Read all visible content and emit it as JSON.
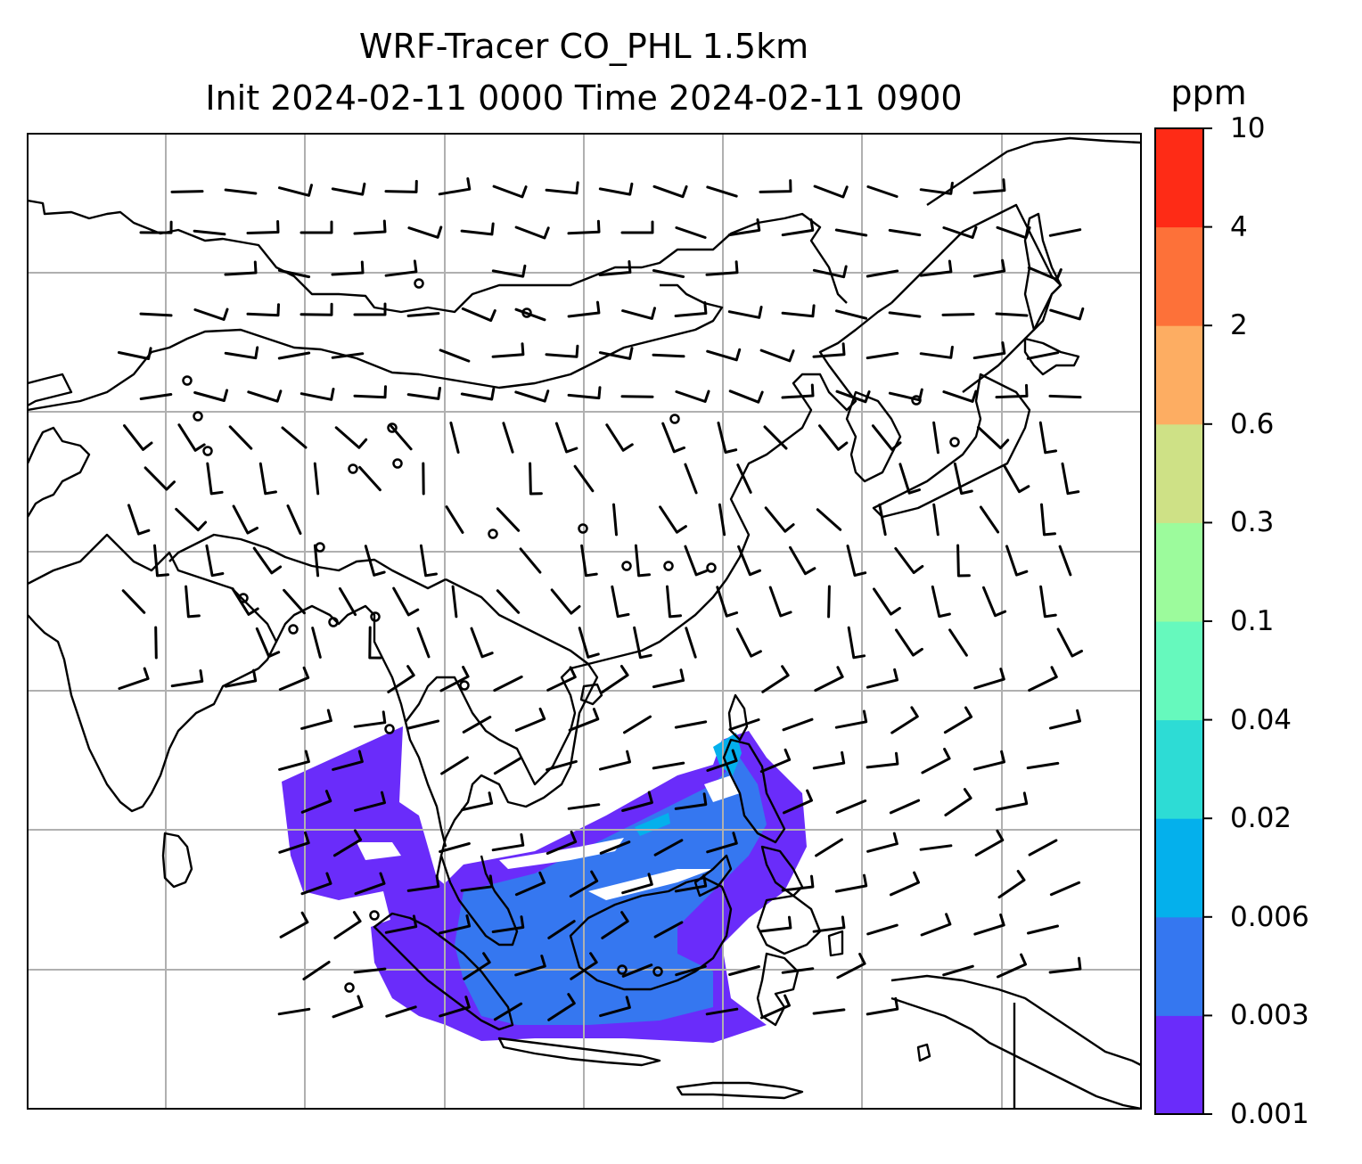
{
  "title_line1": "WRF-Tracer CO_PHL 1.5km",
  "title_line2": "Init 2024-02-11 0000 Time 2024-02-11 0900",
  "colorbar": {
    "unit": "ppm",
    "levels": [
      "0.001",
      "0.003",
      "0.006",
      "0.02",
      "0.04",
      "0.1",
      "0.3",
      "0.6",
      "2",
      "4",
      "10"
    ],
    "colors": [
      "#6a2cfa",
      "#3577f0",
      "#04b0ec",
      "#2ddcd5",
      "#66f9bd",
      "#9cfb9c",
      "#cee186",
      "#fdad62",
      "#fd7139",
      "#fe2b16"
    ]
  },
  "map": {
    "gridlines": true,
    "coastline_color": "#000000",
    "plume_colors": {
      "low": "#6a2cfa",
      "mid": "#3577f0",
      "high": "#04b0ec"
    }
  }
}
